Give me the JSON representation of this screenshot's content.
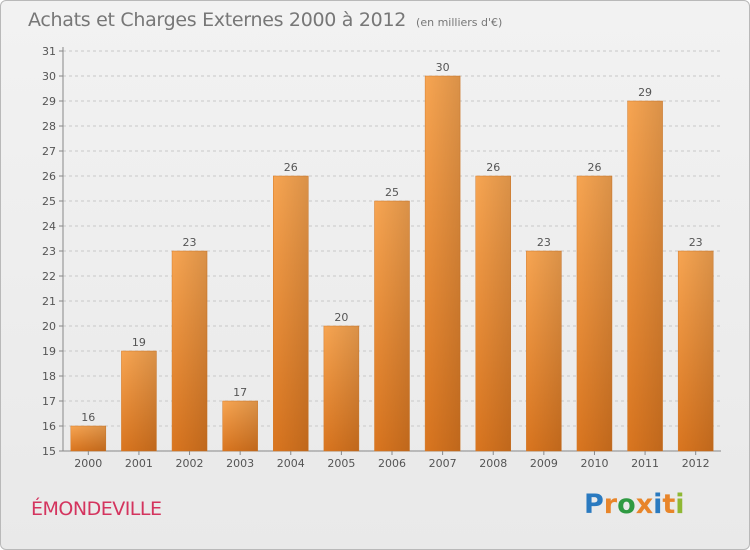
{
  "title": "Achats et Charges Externes 2000 à 2012",
  "subtitle": "(en milliers d'€)",
  "commune": "ÉMONDEVILLE",
  "logo": {
    "text": "Proxiti",
    "letter_colors": [
      "#2a7ac0",
      "#e8852a",
      "#2f9a42",
      "#e8852a",
      "#2a7ac0",
      "#e8852a",
      "#8fb834"
    ]
  },
  "colors": {
    "bar_light": "#f7a552",
    "bar_dark": "#d9751f",
    "accent": "#d4345e"
  },
  "chart_data": {
    "type": "bar",
    "categories": [
      "2000",
      "2001",
      "2002",
      "2003",
      "2004",
      "2005",
      "2006",
      "2007",
      "2008",
      "2009",
      "2010",
      "2011",
      "2012"
    ],
    "values": [
      16,
      19,
      23,
      17,
      26,
      20,
      25,
      30,
      26,
      23,
      26,
      29,
      23
    ],
    "data_labels": [
      "16",
      "19",
      "23",
      "17",
      "26",
      "20",
      "25",
      "30",
      "26",
      "23",
      "26",
      "29",
      "23"
    ],
    "yticks": [
      "15",
      "16",
      "17",
      "18",
      "19",
      "20",
      "21",
      "22",
      "23",
      "24",
      "25",
      "26",
      "27",
      "28",
      "29",
      "30",
      "31"
    ],
    "ylim": [
      15,
      31
    ],
    "grid": "horizontal dashed",
    "legend": "none"
  }
}
